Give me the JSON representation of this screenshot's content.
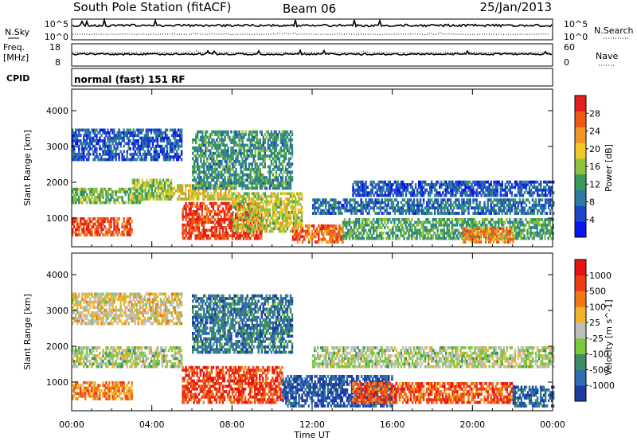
{
  "header": {
    "station": "South Pole Station (fitACF)",
    "beam": "Beam 06",
    "date": "25/Jan/2013"
  },
  "strip_panels": {
    "nsky": {
      "label": "N.Sky",
      "top_tick": "10^5",
      "bottom_tick": "10^0"
    },
    "nsearch": {
      "label": "N.Search",
      "top_tick": "10^5",
      "bottom_tick": "10^0"
    },
    "freq": {
      "label_line1": "Freq.",
      "label_line2": "[MHz]",
      "top_tick": "18",
      "bottom_tick": "8"
    },
    "nave": {
      "label": "Nave",
      "top_tick": "60",
      "bottom_tick": "0"
    },
    "cpid": {
      "label": "CPID",
      "value": "normal (fast) 151 RF"
    }
  },
  "chart_data": [
    {
      "type": "heatmap",
      "name": "power",
      "ylabel": "Slant Range [km]",
      "xlabel": "Time UT",
      "x_ticks": [
        "00:00",
        "04:00",
        "08:00",
        "12:00",
        "16:00",
        "20:00",
        "00:00"
      ],
      "x_range_hours": [
        0,
        24
      ],
      "y_ticks": [
        1000,
        2000,
        3000,
        4000
      ],
      "ylim": [
        200,
        4600
      ],
      "colorbar": {
        "label": "Power [dB]",
        "ticks": [
          4,
          8,
          12,
          16,
          20,
          24,
          28
        ],
        "range": [
          0,
          32
        ],
        "colors": [
          "#0a14f0",
          "#1e46c8",
          "#2e7da0",
          "#3a9a5a",
          "#8cc23c",
          "#f0c828",
          "#f09628",
          "#f05a14",
          "#e61e1e"
        ]
      },
      "bands": [
        {
          "t0": 0.0,
          "t1": 3.0,
          "r0": 500,
          "r1": 1000,
          "level": 0.85
        },
        {
          "t0": 0.0,
          "t1": 3.5,
          "r0": 1400,
          "r1": 1800,
          "level": 0.45
        },
        {
          "t0": 0.0,
          "t1": 5.5,
          "r0": 2600,
          "r1": 3500,
          "level": 0.2
        },
        {
          "t0": 3.0,
          "t1": 5.0,
          "r0": 1500,
          "r1": 2100,
          "level": 0.5
        },
        {
          "t0": 5.5,
          "t1": 9.5,
          "r0": 400,
          "r1": 1400,
          "level": 0.9
        },
        {
          "t0": 5.0,
          "t1": 8.0,
          "r0": 1500,
          "r1": 1900,
          "level": 0.6
        },
        {
          "t0": 6.0,
          "t1": 11.0,
          "r0": 1800,
          "r1": 3400,
          "level": 0.35
        },
        {
          "t0": 8.0,
          "t1": 11.5,
          "r0": 600,
          "r1": 1700,
          "level": 0.55
        },
        {
          "t0": 11.0,
          "t1": 13.5,
          "r0": 300,
          "r1": 800,
          "level": 0.8
        },
        {
          "t0": 12.0,
          "t1": 24.0,
          "r0": 1100,
          "r1": 1500,
          "level": 0.25
        },
        {
          "t0": 14.0,
          "t1": 24.0,
          "r0": 1600,
          "r1": 2000,
          "level": 0.2
        },
        {
          "t0": 13.5,
          "t1": 24.0,
          "r0": 400,
          "r1": 1000,
          "level": 0.4
        },
        {
          "t0": 19.5,
          "t1": 22.0,
          "r0": 300,
          "r1": 700,
          "level": 0.75
        }
      ]
    },
    {
      "type": "heatmap",
      "name": "velocity",
      "ylabel": "Slant Range [km]",
      "xlabel": "Time UT",
      "x_ticks": [
        "00:00",
        "04:00",
        "08:00",
        "12:00",
        "16:00",
        "20:00",
        "00:00"
      ],
      "x_range_hours": [
        0,
        24
      ],
      "y_ticks": [
        1000,
        2000,
        3000,
        4000
      ],
      "ylim": [
        200,
        4600
      ],
      "colorbar": {
        "label": "Velocity [m s^-1]",
        "ticks": [
          "1000",
          "500",
          "100",
          "25",
          "-25",
          "-100",
          "-500",
          "-1000"
        ],
        "colors": [
          "#1e3ca0",
          "#2e6eb4",
          "#3c8c64",
          "#7cc83c",
          "#bebebe",
          "#f0b428",
          "#f07814",
          "#f03c14",
          "#e61414"
        ]
      },
      "bands": [
        {
          "t0": 0.0,
          "t1": 3.0,
          "r0": 500,
          "r1": 1000,
          "level": 0.7
        },
        {
          "t0": 0.0,
          "t1": 5.5,
          "r0": 1400,
          "r1": 2000,
          "level": 0.45
        },
        {
          "t0": 0.0,
          "t1": 5.5,
          "r0": 2600,
          "r1": 3500,
          "level": 0.55
        },
        {
          "t0": 5.5,
          "t1": 10.5,
          "r0": 400,
          "r1": 1400,
          "level": 0.85
        },
        {
          "t0": 6.0,
          "t1": 11.0,
          "r0": 1800,
          "r1": 3400,
          "level": 0.2
        },
        {
          "t0": 10.5,
          "t1": 16.0,
          "r0": 300,
          "r1": 1200,
          "level": 0.1
        },
        {
          "t0": 12.0,
          "t1": 24.0,
          "r0": 1400,
          "r1": 2000,
          "level": 0.45
        },
        {
          "t0": 14.0,
          "t1": 22.0,
          "r0": 400,
          "r1": 1000,
          "level": 0.8
        },
        {
          "t0": 22.0,
          "t1": 24.0,
          "r0": 300,
          "r1": 900,
          "level": 0.15
        }
      ]
    }
  ]
}
